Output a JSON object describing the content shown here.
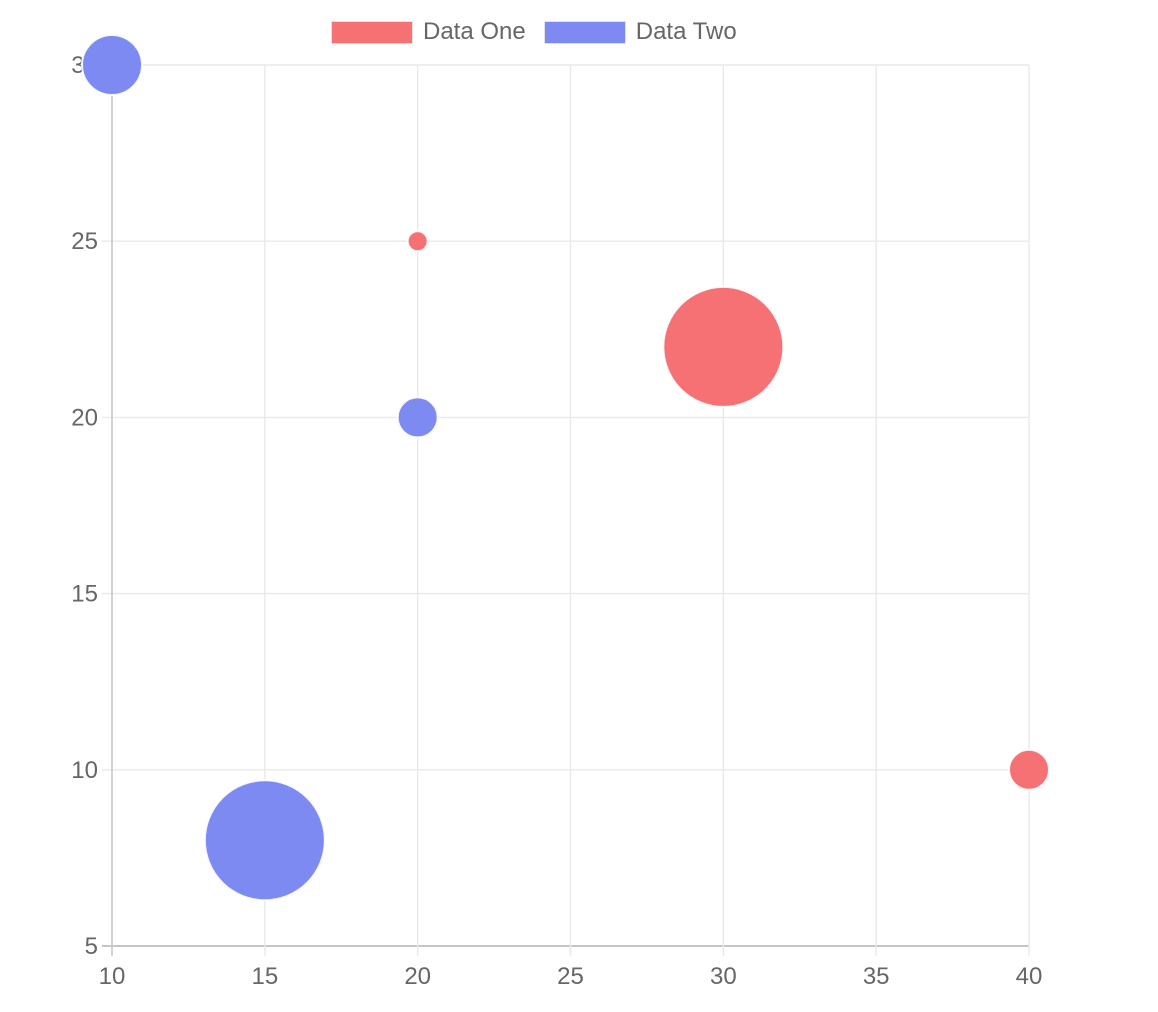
{
  "chart_data": {
    "type": "bubble",
    "title": "",
    "xlabel": "",
    "ylabel": "",
    "xlim": [
      10,
      40
    ],
    "ylim": [
      5,
      30
    ],
    "x_ticks": [
      10,
      15,
      20,
      25,
      30,
      35,
      40
    ],
    "y_ticks": [
      5,
      10,
      15,
      20,
      25,
      30
    ],
    "grid": true,
    "legend_position": "top",
    "series": [
      {
        "name": "Data One",
        "color": "#f57173",
        "points": [
          {
            "x": 20,
            "y": 25,
            "r": 10
          },
          {
            "x": 30,
            "y": 22,
            "r": 60
          },
          {
            "x": 40,
            "y": 10,
            "r": 20
          }
        ]
      },
      {
        "name": "Data Two",
        "color": "#7d8af2",
        "points": [
          {
            "x": 10,
            "y": 30,
            "r": 30
          },
          {
            "x": 20,
            "y": 20,
            "r": 20
          },
          {
            "x": 15,
            "y": 8,
            "r": 60
          }
        ]
      }
    ],
    "colors": {
      "grid_line": "#e9e9e9",
      "axis_edge_line": "#c6c6c6",
      "tick_text": "#666666",
      "bubble_border": "#ffffff",
      "legend_box_border": "#e3e3e3",
      "background": "#ffffff"
    }
  }
}
